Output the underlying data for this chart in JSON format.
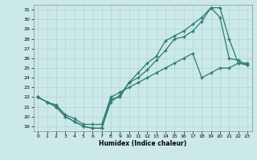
{
  "xlabel": "Humidex (Indice chaleur)",
  "xlim": [
    -0.5,
    23.5
  ],
  "ylim": [
    18.5,
    31.5
  ],
  "yticks": [
    19,
    20,
    21,
    22,
    23,
    24,
    25,
    26,
    27,
    28,
    29,
    30,
    31
  ],
  "xticks": [
    0,
    1,
    2,
    3,
    4,
    5,
    6,
    7,
    8,
    9,
    10,
    11,
    12,
    13,
    14,
    15,
    16,
    17,
    18,
    19,
    20,
    21,
    22,
    23
  ],
  "bg_color": "#cce9e9",
  "grid_color": "#b0d4d4",
  "line_color": "#2d7a70",
  "line1_x": [
    0,
    1,
    2,
    3,
    4,
    5,
    6,
    7,
    8,
    9,
    10,
    11,
    12,
    13,
    14,
    15,
    16,
    17,
    18,
    19,
    20,
    21,
    22,
    23
  ],
  "line1_y": [
    22,
    21.5,
    21,
    20,
    19.5,
    19,
    18.8,
    18.8,
    21.5,
    22.2,
    23.5,
    24,
    24.8,
    25.8,
    26.8,
    28,
    28.2,
    28.8,
    29.8,
    31.2,
    31.2,
    28,
    25.5,
    25.3
  ],
  "line2_x": [
    0,
    1,
    2,
    3,
    4,
    5,
    6,
    7,
    8,
    9,
    10,
    11,
    12,
    13,
    14,
    15,
    16,
    17,
    18,
    19,
    20,
    21,
    22,
    23
  ],
  "line2_y": [
    22,
    21.5,
    21,
    20,
    19.5,
    19,
    18.8,
    18.8,
    21.8,
    22,
    23.5,
    24.5,
    25.5,
    26.2,
    27.8,
    28.3,
    28.8,
    29.5,
    30.2,
    31.2,
    30.2,
    26,
    25.8,
    25.3
  ],
  "line3_x": [
    0,
    1,
    2,
    3,
    4,
    5,
    6,
    7,
    8,
    9,
    10,
    11,
    12,
    13,
    14,
    15,
    16,
    17,
    18,
    19,
    20,
    21,
    22,
    23
  ],
  "line3_y": [
    22,
    21.5,
    21.2,
    20.2,
    19.8,
    19.2,
    19.2,
    19.2,
    22,
    22.5,
    23,
    23.5,
    24,
    24.5,
    25,
    25.5,
    26,
    26.5,
    24,
    24.5,
    25,
    25,
    25.5,
    25.5
  ]
}
